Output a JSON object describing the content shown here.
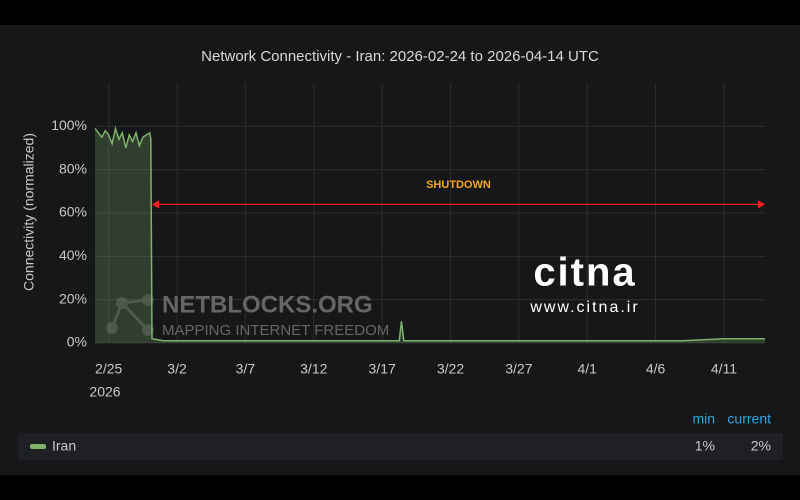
{
  "chart_data": {
    "type": "line",
    "title": "Network Connectivity - Iran: 2026-02-24 to 2026-04-14 UTC",
    "y_label": "Connectivity (normalized)",
    "x_year_label": "2026",
    "xlim": [
      "2026-02-24T00:00",
      "2026-04-14T00:00"
    ],
    "xticks": [
      {
        "value": "2026-02-25T00:00",
        "label": "2/25"
      },
      {
        "value": "2026-03-02T00:00",
        "label": "3/2"
      },
      {
        "value": "2026-03-07T00:00",
        "label": "3/7"
      },
      {
        "value": "2026-03-12T00:00",
        "label": "3/12"
      },
      {
        "value": "2026-03-17T00:00",
        "label": "3/17"
      },
      {
        "value": "2026-03-22T00:00",
        "label": "3/22"
      },
      {
        "value": "2026-03-27T00:00",
        "label": "3/27"
      },
      {
        "value": "2026-04-01T00:00",
        "label": "4/1"
      },
      {
        "value": "2026-04-06T00:00",
        "label": "4/6"
      },
      {
        "value": "2026-04-11T00:00",
        "label": "4/11"
      }
    ],
    "ylim": [
      0,
      120
    ],
    "yticks": [
      {
        "value": 0,
        "label": "0%"
      },
      {
        "value": 20,
        "label": "20%"
      },
      {
        "value": 40,
        "label": "40%"
      },
      {
        "value": 60,
        "label": "60%"
      },
      {
        "value": 80,
        "label": "80%"
      },
      {
        "value": 100,
        "label": "100%"
      }
    ],
    "grid": true,
    "x": [
      "2026-02-24T00:00",
      "2026-02-24T06:00",
      "2026-02-24T12:00",
      "2026-02-24T18:00",
      "2026-02-25T00:00",
      "2026-02-25T06:00",
      "2026-02-25T12:00",
      "2026-02-25T18:00",
      "2026-02-26T00:00",
      "2026-02-26T06:00",
      "2026-02-26T12:00",
      "2026-02-26T18:00",
      "2026-02-27T00:00",
      "2026-02-27T06:00",
      "2026-02-27T12:00",
      "2026-02-27T18:00",
      "2026-02-28T00:00",
      "2026-02-28T02:00",
      "2026-02-28T04:00",
      "2026-03-01T00:00",
      "2026-03-05T00:00",
      "2026-03-10T00:00",
      "2026-03-15T00:00",
      "2026-03-18T06:00",
      "2026-03-18T10:00",
      "2026-03-18T14:00",
      "2026-03-22T00:00",
      "2026-03-28T00:00",
      "2026-04-03T00:00",
      "2026-04-08T00:00",
      "2026-04-11T00:00",
      "2026-04-14T00:00"
    ],
    "series": [
      {
        "name": "Iran",
        "color": "#7eb26d",
        "values": [
          99,
          97,
          95,
          98,
          96,
          92,
          99,
          94,
          97,
          90,
          96,
          93,
          97,
          91,
          95,
          96,
          97,
          94,
          2,
          1,
          1,
          1,
          1,
          1,
          10,
          1,
          1,
          1,
          1,
          1,
          2,
          2
        ]
      }
    ],
    "annotation": {
      "text": "SHUTDOWN",
      "start": "2026-02-28T04:00",
      "end": "2026-04-14T00:00",
      "y": 64,
      "color": "#ff2020",
      "text_color": "#f5a623"
    },
    "legend": {
      "headers": [
        "min",
        "current"
      ],
      "stats": [
        "1%",
        "2%"
      ]
    },
    "watermarks": {
      "netblocks": "NETBLOCKS.ORG",
      "netblocks_tagline": "MAPPING INTERNET FREEDOM",
      "citna": "citna",
      "citna_url": "www.citna.ir"
    }
  }
}
